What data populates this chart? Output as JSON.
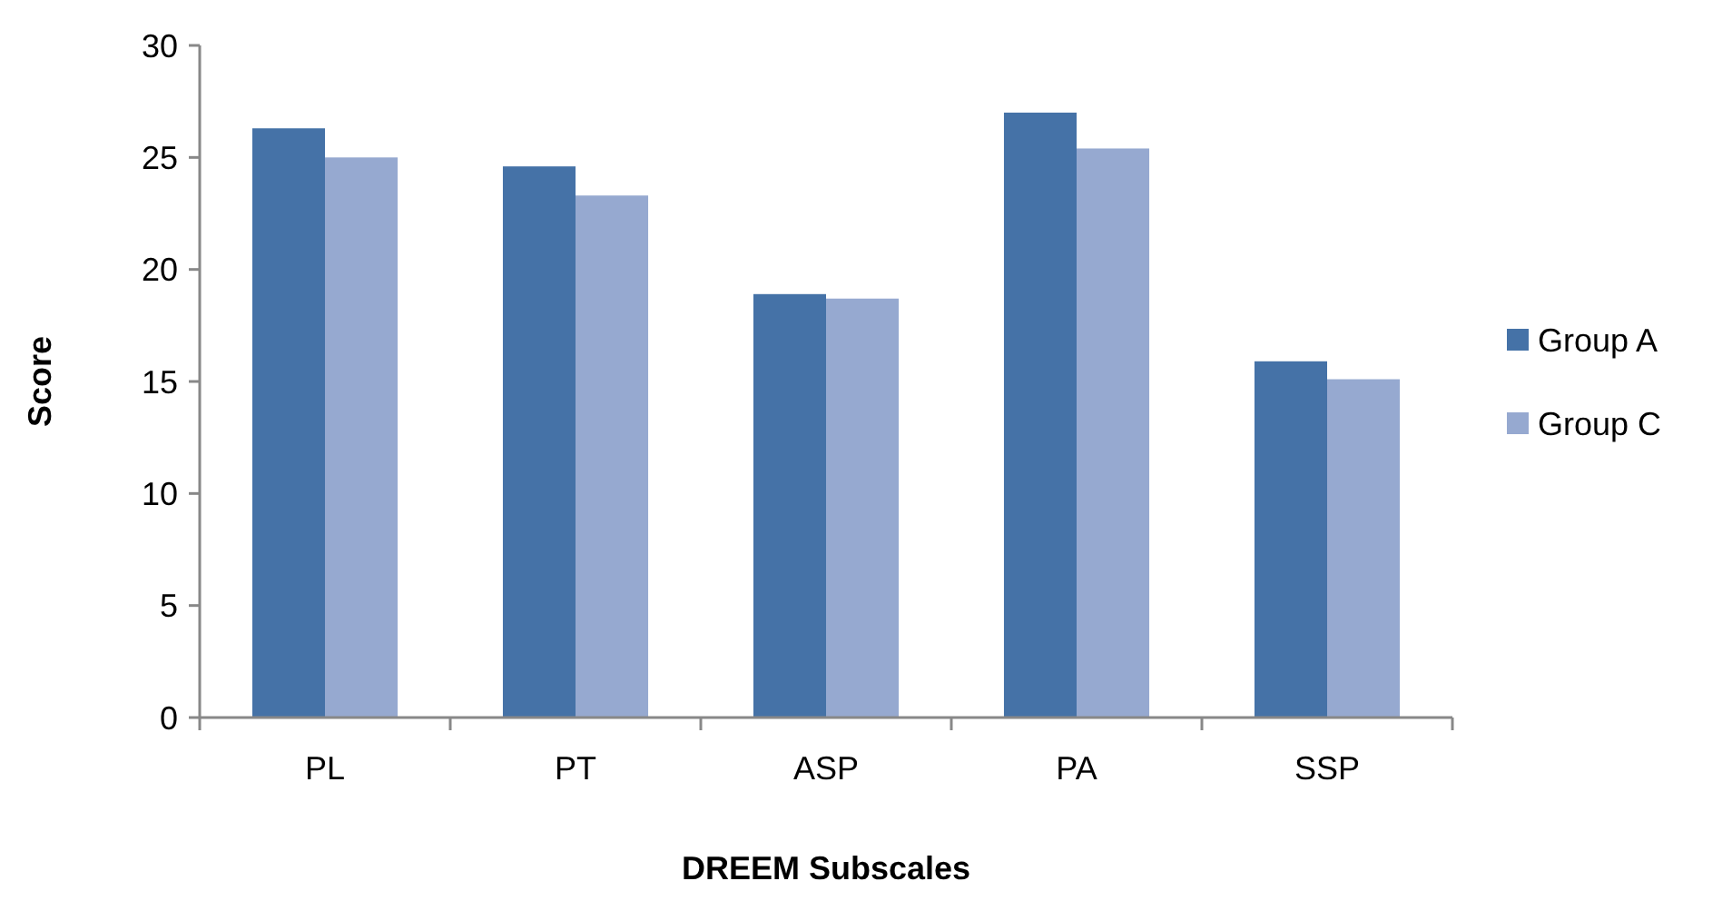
{
  "chart_data": {
    "type": "bar",
    "xlabel": "DREEM Subscales",
    "ylabel": "Score",
    "categories": [
      "PL",
      "PT",
      "ASP",
      "PA",
      "SSP"
    ],
    "series": [
      {
        "name": "Group A",
        "color": "#4572a7",
        "values": [
          26.3,
          24.6,
          18.9,
          27.0,
          15.9
        ]
      },
      {
        "name": "Group C",
        "color": "#96a9d0",
        "values": [
          25.0,
          23.3,
          18.7,
          25.4,
          15.1
        ]
      }
    ],
    "ylim": [
      0,
      30
    ],
    "yticks": [
      0,
      5,
      10,
      15,
      20,
      25,
      30
    ],
    "grid": false,
    "legend": "right"
  }
}
